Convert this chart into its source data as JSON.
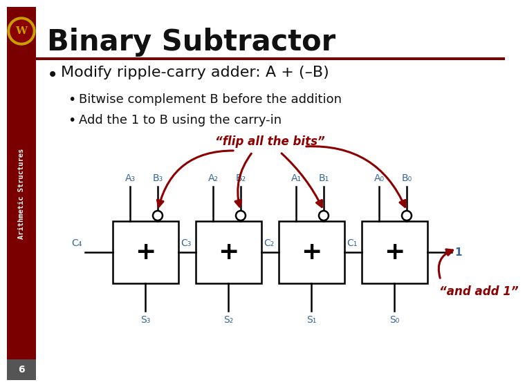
{
  "title": "Binary Subtractor",
  "bullet1": "Modify ripple-carry adder: A + (–B)",
  "bullet2": "Bitwise complement B before the addition",
  "bullet3": "Add the 1 to B using the carry-in",
  "sidebar_text": "Arithmetic Structures",
  "page_num": "6",
  "bg_color": "#ffffff",
  "sidebar_color": "#7a0000",
  "title_color": "#111111",
  "bullet_color": "#111111",
  "blue_color": "#336699",
  "red_color": "#8b0000",
  "adder_labels_A": [
    "A₃",
    "A₂",
    "A₁",
    "A₀"
  ],
  "adder_labels_B": [
    "B₃",
    "B₂",
    "B₁",
    "B₀"
  ],
  "carry_labels": [
    "C₄",
    "C₃",
    "C₂",
    "C₁"
  ],
  "sum_labels": [
    "S₃",
    "S₂",
    "S₁",
    "S₀"
  ],
  "flip_text": "“flip all the bits”",
  "add1_text": "“and add 1”",
  "logo_outer_color": "#c8a000",
  "logo_inner_color": "#8b0000"
}
